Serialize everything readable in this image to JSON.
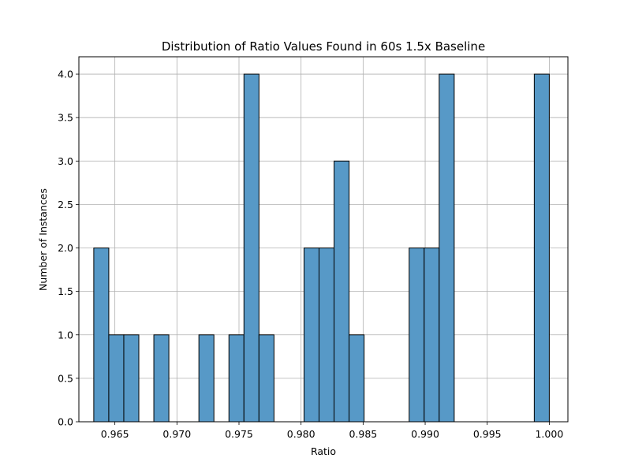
{
  "chart_data": {
    "type": "bar",
    "title": "Distribution of Ratio Values Found in 60s 1.5x Baseline",
    "xlabel": "Ratio",
    "ylabel": "Number of Instances",
    "xlim": [
      0.9621,
      1.0015
    ],
    "ylim": [
      0,
      4.2
    ],
    "grid": true,
    "bar_color": "#5799c7",
    "bar_edge_color": "#000000",
    "x_ticks": [
      {
        "value": 0.965,
        "label": "0.965"
      },
      {
        "value": 0.97,
        "label": "0.970"
      },
      {
        "value": 0.975,
        "label": "0.975"
      },
      {
        "value": 0.98,
        "label": "0.980"
      },
      {
        "value": 0.985,
        "label": "0.985"
      },
      {
        "value": 0.99,
        "label": "0.990"
      },
      {
        "value": 0.995,
        "label": "0.995"
      },
      {
        "value": 1.0,
        "label": "1.000"
      }
    ],
    "y_ticks": [
      {
        "value": 0.0,
        "label": "0.0"
      },
      {
        "value": 0.5,
        "label": "0.5"
      },
      {
        "value": 1.0,
        "label": "1.0"
      },
      {
        "value": 1.5,
        "label": "1.5"
      },
      {
        "value": 2.0,
        "label": "2.0"
      },
      {
        "value": 2.5,
        "label": "2.5"
      },
      {
        "value": 3.0,
        "label": "3.0"
      },
      {
        "value": 3.5,
        "label": "3.5"
      },
      {
        "value": 4.0,
        "label": "4.0"
      }
    ],
    "bins": [
      {
        "x0": 0.9633,
        "x1": 0.96451,
        "count": 2
      },
      {
        "x0": 0.96451,
        "x1": 0.96572,
        "count": 1
      },
      {
        "x0": 0.96572,
        "x1": 0.96693,
        "count": 1
      },
      {
        "x0": 0.96814,
        "x1": 0.96935,
        "count": 1
      },
      {
        "x0": 0.97177,
        "x1": 0.97298,
        "count": 1
      },
      {
        "x0": 0.97419,
        "x1": 0.9754,
        "count": 1
      },
      {
        "x0": 0.9754,
        "x1": 0.97661,
        "count": 4
      },
      {
        "x0": 0.97661,
        "x1": 0.97782,
        "count": 1
      },
      {
        "x0": 0.98024,
        "x1": 0.98145,
        "count": 2
      },
      {
        "x0": 0.98145,
        "x1": 0.98266,
        "count": 2
      },
      {
        "x0": 0.98266,
        "x1": 0.98387,
        "count": 3
      },
      {
        "x0": 0.98387,
        "x1": 0.98508,
        "count": 1
      },
      {
        "x0": 0.98871,
        "x1": 0.98992,
        "count": 2
      },
      {
        "x0": 0.98992,
        "x1": 0.99113,
        "count": 2
      },
      {
        "x0": 0.99113,
        "x1": 0.99234,
        "count": 4
      },
      {
        "x0": 0.99879,
        "x1": 1.0,
        "count": 4
      }
    ]
  }
}
